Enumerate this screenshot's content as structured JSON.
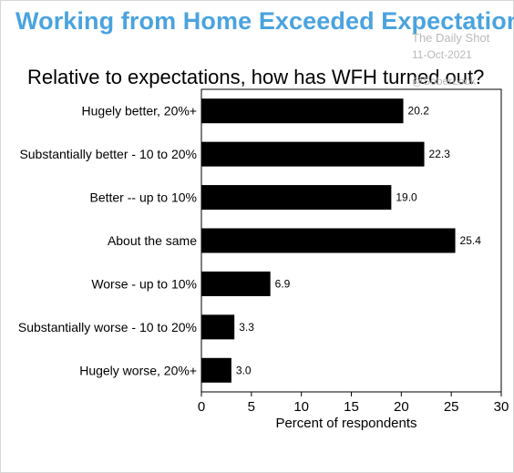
{
  "header": {
    "headline": "Working from Home Exceeded Expectations",
    "watermark_source": "The Daily Shot",
    "watermark_date": "11-Oct-2021",
    "watermark_handle": "@SoberLook"
  },
  "chart_data": {
    "type": "bar",
    "orientation": "horizontal",
    "title": "Relative to expectations, how has WFH turned out?",
    "xlabel": "Percent of respondents",
    "ylabel": "",
    "categories": [
      "Hugely better, 20%+",
      "Substantially better - 10 to 20%",
      "Better -- up to 10%",
      "About the same",
      "Worse - up to 10%",
      "Substantially worse - 10 to 20%",
      "Hugely worse, 20%+"
    ],
    "values": [
      20.2,
      22.3,
      19.0,
      25.4,
      6.9,
      3.3,
      3.0
    ],
    "value_labels": [
      "20.2",
      "22.3",
      "19.0",
      "25.4",
      "6.9",
      "3.3",
      "3.0"
    ],
    "xlim": [
      0,
      30
    ],
    "xticks": [
      "0",
      "5",
      "10",
      "15",
      "20",
      "25",
      "30"
    ],
    "grid": false,
    "bar_color": "#000000"
  }
}
